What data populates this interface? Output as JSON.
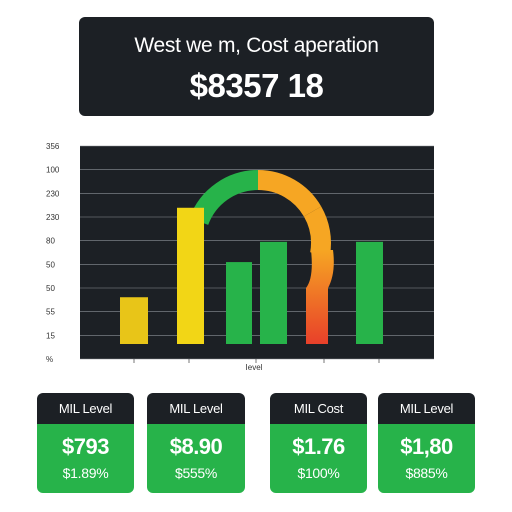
{
  "header": {
    "title": "West we m, Cost aperation",
    "amount": "$8357 18"
  },
  "chart_data": {
    "type": "bar",
    "yticks": [
      "356",
      "100",
      "230",
      "230",
      "80",
      "50",
      "50",
      "55",
      "15",
      "%"
    ],
    "xlabel": "Ievel",
    "bars": [
      {
        "value": 58,
        "color": "#e8c518"
      },
      {
        "value": 142,
        "color": "#f2d616"
      },
      {
        "value": 91,
        "color": "#27b34a"
      },
      {
        "value": 110,
        "color": "#27b34a"
      },
      {
        "value": 110,
        "color": "#27b34a"
      }
    ],
    "ylim": [
      0,
      200
    ],
    "gauge": {
      "value": 0.85,
      "colors": [
        "#27b34a",
        "#f6a623",
        "#f6a623",
        "#e8402a"
      ]
    },
    "grid": true
  },
  "cards": [
    {
      "label": "MIL Level",
      "value": "$793",
      "pct": "$1.89%"
    },
    {
      "label": "MIL Level",
      "value": "$8.90",
      "pct": "$555%"
    },
    {
      "label": "MIL Cost",
      "value": "$1.76",
      "pct": "$100%"
    },
    {
      "label": "MIL Level",
      "value": "$1,80",
      "pct": "$885%"
    }
  ]
}
